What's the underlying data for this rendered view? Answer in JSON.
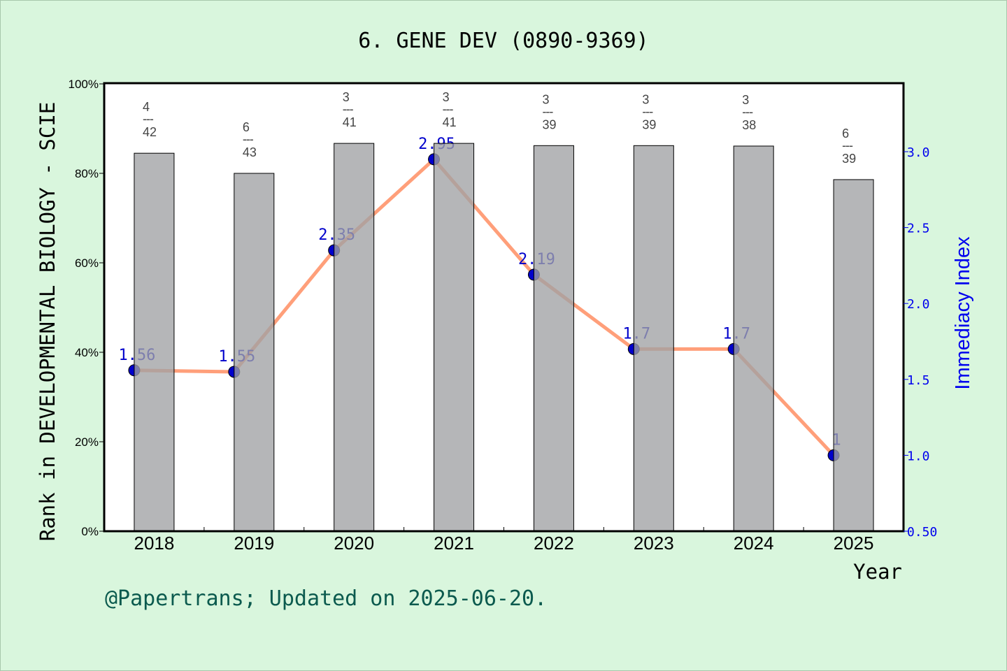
{
  "chart_data": {
    "type": "bar+line",
    "title": "6. GENE DEV (0890-9369)",
    "xlabel": "Year",
    "ylabel_left": "Rank in DEVELOPMENTAL BIOLOGY - SCIE",
    "ylabel_right": "Immediacy Index",
    "categories": [
      "2018",
      "2019",
      "2020",
      "2021",
      "2022",
      "2023",
      "2024",
      "2025"
    ],
    "left_axis": {
      "ylim": [
        0,
        100
      ],
      "ticks": [
        "0%",
        "20%",
        "40%",
        "60%",
        "80%",
        "100%"
      ],
      "tick_values": [
        0,
        20,
        40,
        60,
        80,
        100
      ]
    },
    "right_axis": {
      "ylim": [
        0.5,
        3.45
      ],
      "ticks": [
        "0.50",
        "1.0",
        "1.5",
        "2.0",
        "2.5",
        "3.0"
      ],
      "tick_values": [
        0.5,
        1.0,
        1.5,
        2.0,
        2.5,
        3.0
      ]
    },
    "series": [
      {
        "name": "Rank percentile",
        "type": "bar",
        "axis": "left",
        "color": "#b8b9bb",
        "values": [
          84.5,
          80.0,
          86.7,
          86.7,
          86.2,
          86.2,
          86.1,
          78.6
        ],
        "rank_labels": [
          {
            "rank": "4",
            "total": "42"
          },
          {
            "rank": "6",
            "total": "43"
          },
          {
            "rank": "3",
            "total": "41"
          },
          {
            "rank": "3",
            "total": "41"
          },
          {
            "rank": "3",
            "total": "39"
          },
          {
            "rank": "3",
            "total": "39"
          },
          {
            "rank": "3",
            "total": "38"
          },
          {
            "rank": "6",
            "total": "39"
          }
        ]
      },
      {
        "name": "Immediacy Index",
        "type": "line",
        "axis": "right",
        "color": "#ff9f7a",
        "marker_color": "#0000cc",
        "values": [
          1.56,
          1.55,
          2.35,
          2.95,
          2.19,
          1.7,
          1.7,
          1.0
        ],
        "labels": [
          "1.56",
          "1.55",
          "2.35",
          "2.95",
          "2.19",
          "1.7",
          "1.7",
          "1"
        ]
      }
    ],
    "grid": false,
    "legend": "none"
  },
  "footer": "@Papertrans; Updated on 2025-06-20."
}
